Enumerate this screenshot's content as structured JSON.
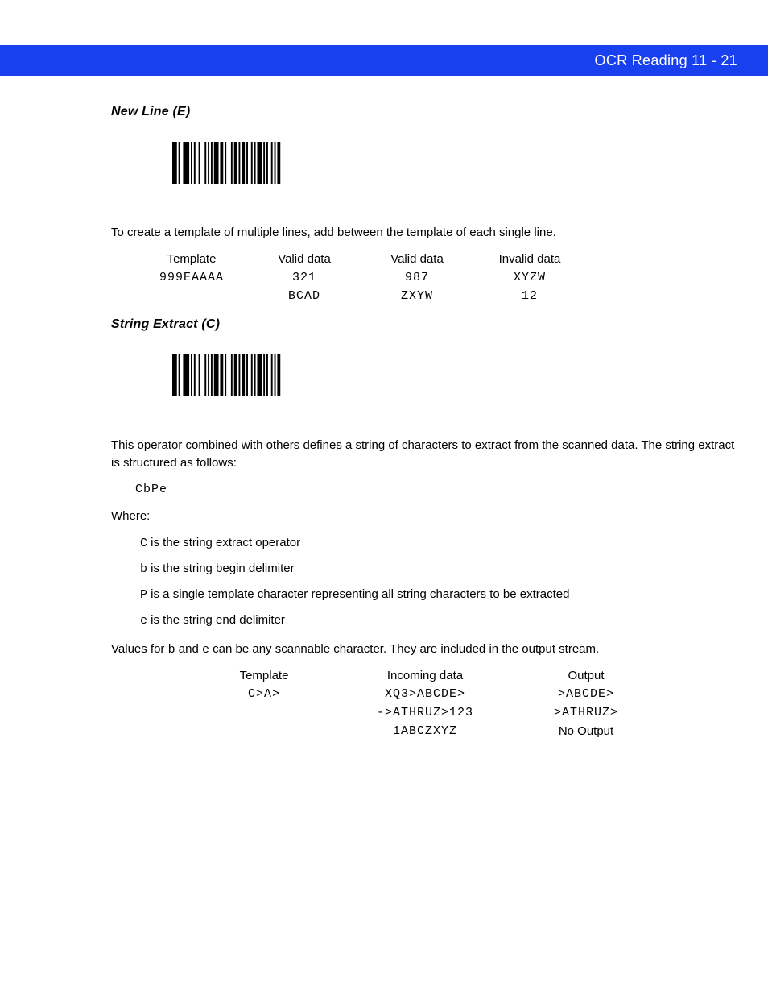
{
  "header": {
    "title": "OCR Reading  11 - 21",
    "bg_color": "#1840ef",
    "text_color": "#ffffff"
  },
  "section1": {
    "heading": "New Line (E)",
    "intro": "To create a template of multiple lines, add     between the template of each single line.",
    "table": {
      "headers": [
        "Template",
        "Valid data",
        "Valid data",
        "Invalid data"
      ],
      "rows": [
        [
          "999EAAAA",
          "321",
          "987",
          "XYZW"
        ],
        [
          "",
          "BCAD",
          "ZXYW",
          "12"
        ]
      ]
    }
  },
  "section2": {
    "heading": "String Extract (C)",
    "para": "This operator combined with others defines a string of characters to extract from the scanned data. The string extract is structured as follows:",
    "struct": "CbPe",
    "where_label": "Where:",
    "defs": {
      "c_code": "C",
      "c_text": " is the string extract operator",
      "b_code": "b",
      "b_text": " is the string begin delimiter",
      "p_code": "P",
      "p_text": "  is a single template character representing all string characters to be extracted",
      "e_code": "e",
      "e_text": " is the string end delimiter"
    },
    "values_pre": "Values for ",
    "values_b": "b",
    "values_mid": " and ",
    "values_e": "e",
    "values_post": " can be any scannable character. They are included in the output stream.",
    "table": {
      "headers": [
        "Template",
        "Incoming data",
        "Output"
      ],
      "rows": [
        [
          "C>A>",
          "XQ3>ABCDE>",
          ">ABCDE>"
        ],
        [
          "",
          "->ATHRUZ>123",
          ">ATHRUZ>"
        ],
        [
          "",
          "1ABCZXYZ",
          "No Output"
        ]
      ]
    }
  },
  "barcode": {
    "width": 140,
    "height": 52,
    "pattern": [
      3,
      1,
      1,
      2,
      4,
      1,
      1,
      1,
      1,
      2,
      1,
      3,
      1,
      1,
      1,
      1,
      1,
      1,
      3,
      1,
      2,
      1,
      1,
      3,
      1,
      1,
      2,
      1,
      1,
      1,
      2,
      1,
      1,
      2,
      1,
      1,
      1,
      1,
      3,
      1,
      1,
      1,
      1,
      2,
      1,
      1,
      1,
      1,
      2,
      3
    ],
    "bar_color": "#000000"
  }
}
